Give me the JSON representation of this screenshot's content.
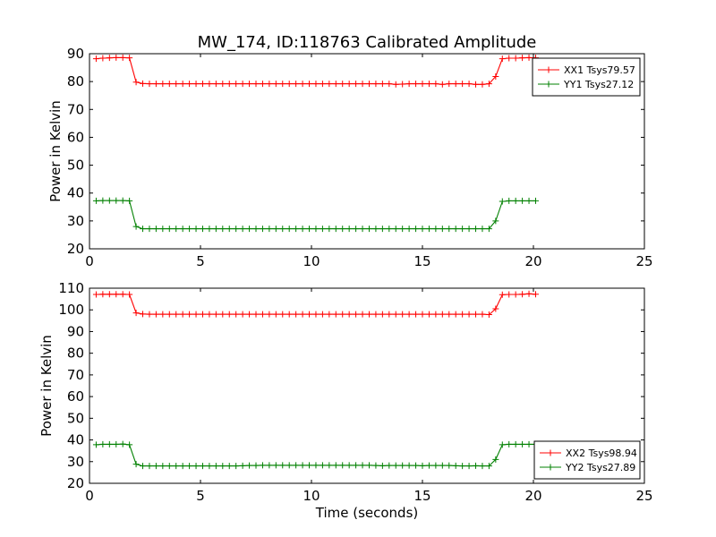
{
  "figure": {
    "title": "MW_174, ID:118763 Calibrated Amplitude",
    "xlabel": "Time (seconds)"
  },
  "chart_data": [
    {
      "type": "line",
      "ylabel": "Power in Kelvin",
      "xlim": [
        0,
        25
      ],
      "ylim": [
        20,
        90
      ],
      "xticks": [
        0,
        5,
        10,
        15,
        20,
        25
      ],
      "yticks": [
        20,
        30,
        40,
        50,
        60,
        70,
        80,
        90
      ],
      "legend": "top-right",
      "grid": false,
      "series": [
        {
          "name": "XX1 Tsys79.57",
          "color": "#ff0000",
          "marker": "+",
          "x": [
            0.3,
            0.6,
            0.9,
            1.2,
            1.5,
            1.8,
            2.1,
            2.4,
            2.7,
            3.0,
            3.3,
            3.6,
            3.9,
            4.2,
            4.5,
            4.8,
            5.1,
            5.4,
            5.7,
            6.0,
            6.3,
            6.6,
            6.9,
            7.2,
            7.5,
            7.8,
            8.1,
            8.4,
            8.7,
            9.0,
            9.3,
            9.6,
            9.9,
            10.2,
            10.5,
            10.8,
            11.1,
            11.4,
            11.7,
            12.0,
            12.3,
            12.6,
            12.9,
            13.2,
            13.5,
            13.8,
            14.1,
            14.4,
            14.7,
            15.0,
            15.3,
            15.6,
            15.9,
            16.2,
            16.5,
            16.8,
            17.1,
            17.4,
            17.7,
            18.0,
            18.3,
            18.6,
            18.9,
            19.2,
            19.5,
            19.8,
            20.1
          ],
          "y": [
            88.2,
            88.4,
            88.5,
            88.6,
            88.6,
            88.5,
            79.8,
            79.3,
            79.2,
            79.2,
            79.2,
            79.2,
            79.2,
            79.2,
            79.2,
            79.2,
            79.2,
            79.2,
            79.2,
            79.2,
            79.2,
            79.2,
            79.2,
            79.2,
            79.2,
            79.2,
            79.2,
            79.2,
            79.2,
            79.2,
            79.2,
            79.2,
            79.2,
            79.2,
            79.2,
            79.2,
            79.2,
            79.2,
            79.2,
            79.2,
            79.2,
            79.2,
            79.2,
            79.2,
            79.2,
            79.0,
            79.1,
            79.2,
            79.2,
            79.2,
            79.2,
            79.2,
            79.0,
            79.2,
            79.2,
            79.2,
            79.2,
            79.0,
            79.0,
            79.2,
            81.8,
            88.2,
            88.4,
            88.4,
            88.5,
            88.6,
            88.5
          ]
        },
        {
          "name": "YY1 Tsys27.12",
          "color": "#008000",
          "marker": "+",
          "x": [
            0.3,
            0.6,
            0.9,
            1.2,
            1.5,
            1.8,
            2.1,
            2.4,
            2.7,
            3.0,
            3.3,
            3.6,
            3.9,
            4.2,
            4.5,
            4.8,
            5.1,
            5.4,
            5.7,
            6.0,
            6.3,
            6.6,
            6.9,
            7.2,
            7.5,
            7.8,
            8.1,
            8.4,
            8.7,
            9.0,
            9.3,
            9.6,
            9.9,
            10.2,
            10.5,
            10.8,
            11.1,
            11.4,
            11.7,
            12.0,
            12.3,
            12.6,
            12.9,
            13.2,
            13.5,
            13.8,
            14.1,
            14.4,
            14.7,
            15.0,
            15.3,
            15.6,
            15.9,
            16.2,
            16.5,
            16.8,
            17.1,
            17.4,
            17.7,
            18.0,
            18.3,
            18.6,
            18.9,
            19.2,
            19.5,
            19.8,
            20.1
          ],
          "y": [
            37.2,
            37.3,
            37.3,
            37.3,
            37.3,
            37.2,
            28.0,
            27.2,
            27.2,
            27.2,
            27.2,
            27.2,
            27.2,
            27.2,
            27.2,
            27.2,
            27.2,
            27.2,
            27.2,
            27.2,
            27.2,
            27.2,
            27.2,
            27.2,
            27.2,
            27.2,
            27.2,
            27.2,
            27.2,
            27.2,
            27.2,
            27.2,
            27.2,
            27.2,
            27.2,
            27.2,
            27.2,
            27.2,
            27.2,
            27.2,
            27.2,
            27.2,
            27.2,
            27.2,
            27.2,
            27.2,
            27.2,
            27.2,
            27.2,
            27.2,
            27.2,
            27.2,
            27.2,
            27.2,
            27.2,
            27.2,
            27.2,
            27.2,
            27.2,
            27.2,
            30.0,
            37.0,
            37.2,
            37.2,
            37.2,
            37.2,
            37.2
          ]
        }
      ]
    },
    {
      "type": "line",
      "ylabel": "Power in Kelvin",
      "xlim": [
        0,
        25
      ],
      "ylim": [
        20,
        110
      ],
      "xticks": [
        0,
        5,
        10,
        15,
        20,
        25
      ],
      "yticks": [
        20,
        30,
        40,
        50,
        60,
        70,
        80,
        90,
        100,
        110
      ],
      "legend": "bottom-right",
      "grid": false,
      "series": [
        {
          "name": "XX2 Tsys98.94",
          "color": "#ff0000",
          "marker": "+",
          "x": [
            0.3,
            0.6,
            0.9,
            1.2,
            1.5,
            1.8,
            2.1,
            2.4,
            2.7,
            3.0,
            3.3,
            3.6,
            3.9,
            4.2,
            4.5,
            4.8,
            5.1,
            5.4,
            5.7,
            6.0,
            6.3,
            6.6,
            6.9,
            7.2,
            7.5,
            7.8,
            8.1,
            8.4,
            8.7,
            9.0,
            9.3,
            9.6,
            9.9,
            10.2,
            10.5,
            10.8,
            11.1,
            11.4,
            11.7,
            12.0,
            12.3,
            12.6,
            12.9,
            13.2,
            13.5,
            13.8,
            14.1,
            14.4,
            14.7,
            15.0,
            15.3,
            15.6,
            15.9,
            16.2,
            16.5,
            16.8,
            17.1,
            17.4,
            17.7,
            18.0,
            18.3,
            18.6,
            18.9,
            19.2,
            19.5,
            19.8,
            20.1
          ],
          "y": [
            107.1,
            107.2,
            107.2,
            107.2,
            107.2,
            107.1,
            98.6,
            98.1,
            98.0,
            98.0,
            98.0,
            98.0,
            98.0,
            98.0,
            98.0,
            98.0,
            98.0,
            98.0,
            98.0,
            98.0,
            98.0,
            98.0,
            98.0,
            98.0,
            98.0,
            98.0,
            98.0,
            98.0,
            98.0,
            98.0,
            98.0,
            98.0,
            98.0,
            98.0,
            98.0,
            98.0,
            98.0,
            98.0,
            98.0,
            98.0,
            98.0,
            98.0,
            98.0,
            98.0,
            98.0,
            98.0,
            98.0,
            98.0,
            98.0,
            98.0,
            98.0,
            98.0,
            98.0,
            98.0,
            98.0,
            98.0,
            98.0,
            98.0,
            98.0,
            97.8,
            100.5,
            107.0,
            107.1,
            107.1,
            107.2,
            107.4,
            107.2
          ]
        },
        {
          "name": "YY2 Tsys27.89",
          "color": "#008000",
          "marker": "+",
          "x": [
            0.3,
            0.6,
            0.9,
            1.2,
            1.5,
            1.8,
            2.1,
            2.4,
            2.7,
            3.0,
            3.3,
            3.6,
            3.9,
            4.2,
            4.5,
            4.8,
            5.1,
            5.4,
            5.7,
            6.0,
            6.3,
            6.6,
            6.9,
            7.2,
            7.5,
            7.8,
            8.1,
            8.4,
            8.7,
            9.0,
            9.3,
            9.6,
            9.9,
            10.2,
            10.5,
            10.8,
            11.1,
            11.4,
            11.7,
            12.0,
            12.3,
            12.6,
            12.9,
            13.2,
            13.5,
            13.8,
            14.1,
            14.4,
            14.7,
            15.0,
            15.3,
            15.6,
            15.9,
            16.2,
            16.5,
            16.8,
            17.1,
            17.4,
            17.7,
            18.0,
            18.3,
            18.6,
            18.9,
            19.2,
            19.5,
            19.8,
            20.1
          ],
          "y": [
            37.8,
            38.0,
            38.0,
            38.0,
            38.1,
            37.8,
            28.8,
            28.0,
            28.0,
            28.0,
            28.0,
            28.0,
            28.0,
            28.0,
            28.0,
            28.0,
            28.0,
            28.0,
            28.0,
            28.0,
            28.0,
            28.0,
            28.1,
            28.2,
            28.2,
            28.3,
            28.3,
            28.3,
            28.3,
            28.3,
            28.3,
            28.3,
            28.3,
            28.3,
            28.3,
            28.3,
            28.3,
            28.3,
            28.3,
            28.3,
            28.3,
            28.3,
            28.2,
            28.1,
            28.2,
            28.2,
            28.2,
            28.2,
            28.2,
            28.1,
            28.2,
            28.2,
            28.2,
            28.2,
            28.1,
            28.0,
            28.0,
            28.1,
            28.0,
            28.0,
            31.0,
            37.8,
            38.0,
            38.0,
            38.0,
            38.0,
            38.0
          ]
        }
      ]
    }
  ]
}
